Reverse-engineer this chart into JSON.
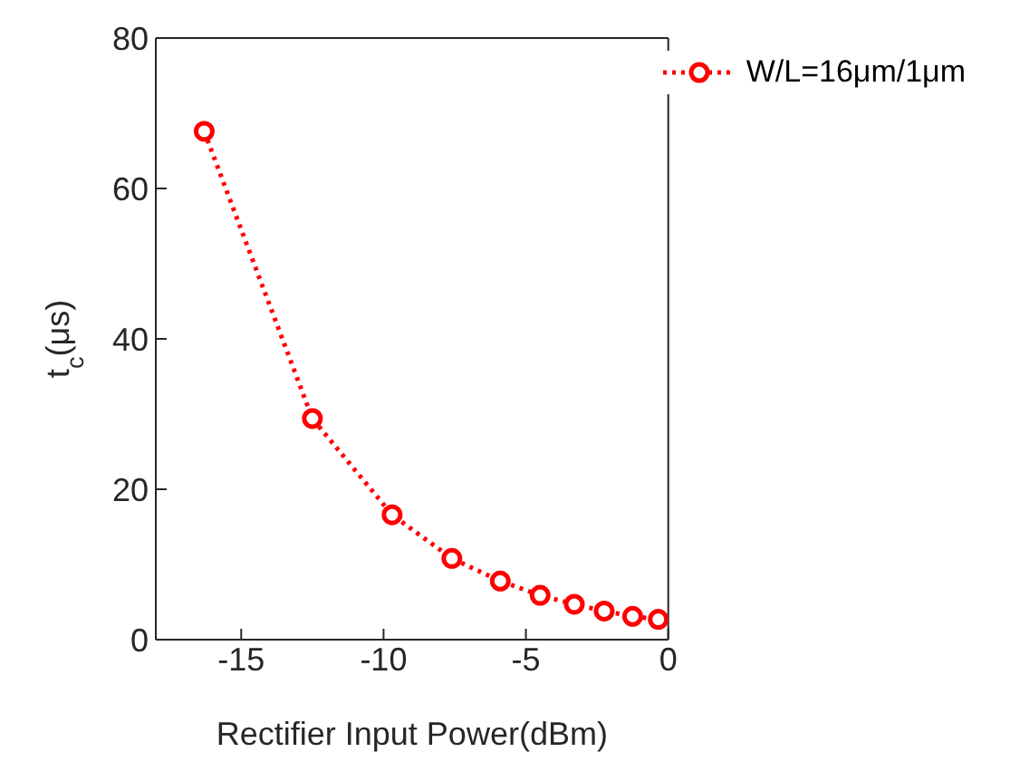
{
  "chart_data": {
    "type": "line",
    "xlabel": "Rectifier Input Power(dBm)",
    "ylabel": "t$_{c}$(μs)",
    "x": [
      -16.3,
      -12.5,
      -9.7,
      -7.6,
      -5.9,
      -4.5,
      -3.3,
      -2.25,
      -1.25,
      -0.35
    ],
    "series": [
      {
        "name": "W/L=16μm/1μm",
        "color": "#ff0000",
        "values": [
          67.6,
          29.4,
          16.6,
          10.8,
          7.8,
          5.9,
          4.7,
          3.8,
          3.1,
          2.7
        ]
      }
    ],
    "xlim": [
      -18,
      0
    ],
    "xticks": [
      -15,
      -10,
      -5,
      0
    ],
    "ylim": [
      0,
      80
    ],
    "yticks": [
      0,
      20,
      40,
      60,
      80
    ],
    "grid": false,
    "legend": "top right",
    "marker": "circle",
    "line_style": "dotted"
  }
}
